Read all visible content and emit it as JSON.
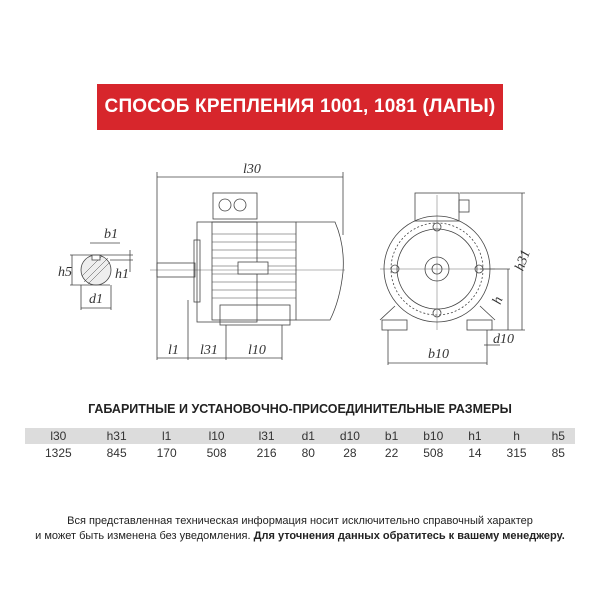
{
  "banner": {
    "title": "СПОСОБ КРЕПЛЕНИЯ 1001, 1081 (ЛАПЫ)",
    "color": "#d7262c"
  },
  "drawing": {
    "labels": {
      "l30": "l30",
      "b1": "b1",
      "h5": "h5",
      "h1": "h1",
      "d1": "d1",
      "l1": "l1",
      "l31": "l31",
      "l10": "l10",
      "h31": "h31",
      "h": "h",
      "d10": "d10",
      "b10": "b10"
    }
  },
  "table": {
    "title": "ГАБАРИТНЫЕ И УСТАНОВОЧНО-ПРИСОЕДИНИТЕЛЬНЫЕ РАЗМЕРЫ",
    "headers": [
      "l30",
      "h31",
      "l1",
      "l10",
      "l31",
      "d1",
      "d10",
      "b1",
      "b10",
      "h1",
      "h",
      "h5"
    ],
    "values": [
      "1325",
      "845",
      "170",
      "508",
      "216",
      "80",
      "28",
      "22",
      "508",
      "14",
      "315",
      "85"
    ]
  },
  "note": {
    "line1": "Вся представленная техническая информация носит исключительно справочный характер",
    "line2": "и может быть изменена без уведомления.",
    "line2_bold": "Для уточнения данных обратитесь к вашему менеджеру."
  }
}
